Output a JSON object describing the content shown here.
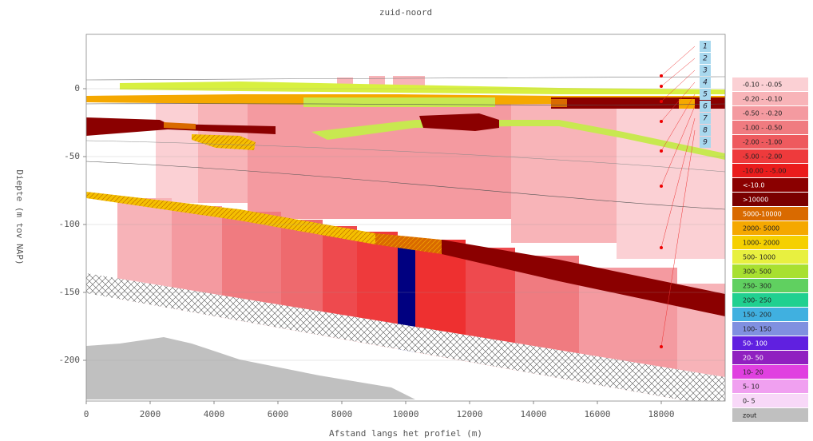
{
  "chart_data": {
    "type": "section",
    "title": "zuid-noord",
    "xlabel": "Afstand langs het profiel (m)",
    "ylabel": "Diepte (m tov NAP)",
    "xlim": [
      0,
      20000
    ],
    "xticks": [
      0,
      2000,
      4000,
      6000,
      8000,
      10000,
      12000,
      14000,
      16000,
      18000
    ],
    "ylim": [
      -230,
      40
    ],
    "yticks": [
      0,
      -50,
      -100,
      -150,
      -200
    ],
    "grid": true,
    "wells": [
      "1",
      "2",
      "3",
      "4",
      "5",
      "6",
      "7",
      "8",
      "9"
    ],
    "legend": [
      {
        "label": "-0.10 - -0.05",
        "color": "#fbd0d4"
      },
      {
        "label": "-0.20 - -0.10",
        "color": "#f8b4b8"
      },
      {
        "label": "-0.50 - -0.20",
        "color": "#f49aa0"
      },
      {
        "label": "-1.00 - -0.50",
        "color": "#f07b80"
      },
      {
        "label": "-2.00 - -1.00",
        "color": "#ee5a5e"
      },
      {
        "label": "-5.00 - -2.00",
        "color": "#ee3a3c"
      },
      {
        "label": "-10.00 - -5.00",
        "color": "#ea1c1c"
      },
      {
        "label": "<-10.0",
        "color": "#8b0000"
      },
      {
        "label": ">10000",
        "color": "#7a0000"
      },
      {
        "label": "5000-10000",
        "color": "#d96a00"
      },
      {
        "label": "2000- 5000",
        "color": "#f5a800"
      },
      {
        "label": "1000- 2000",
        "color": "#f5d000"
      },
      {
        "label": "500- 1000",
        "color": "#e8f040"
      },
      {
        "label": "300- 500",
        "color": "#a8e030"
      },
      {
        "label": "250- 300",
        "color": "#60d060"
      },
      {
        "label": "200- 250",
        "color": "#20d090"
      },
      {
        "label": "150- 200",
        "color": "#40b0e0"
      },
      {
        "label": "100- 150",
        "color": "#8090e0"
      },
      {
        "label": "50- 100",
        "color": "#6020e0"
      },
      {
        "label": "20- 50",
        "color": "#9020c0"
      },
      {
        "label": "10- 20",
        "color": "#e040e0"
      },
      {
        "label": "5- 10",
        "color": "#f0a0f0"
      },
      {
        "label": "0- 5",
        "color": "#f8d8f8"
      },
      {
        "label": "zout",
        "color": "#c0c0c0"
      }
    ]
  }
}
